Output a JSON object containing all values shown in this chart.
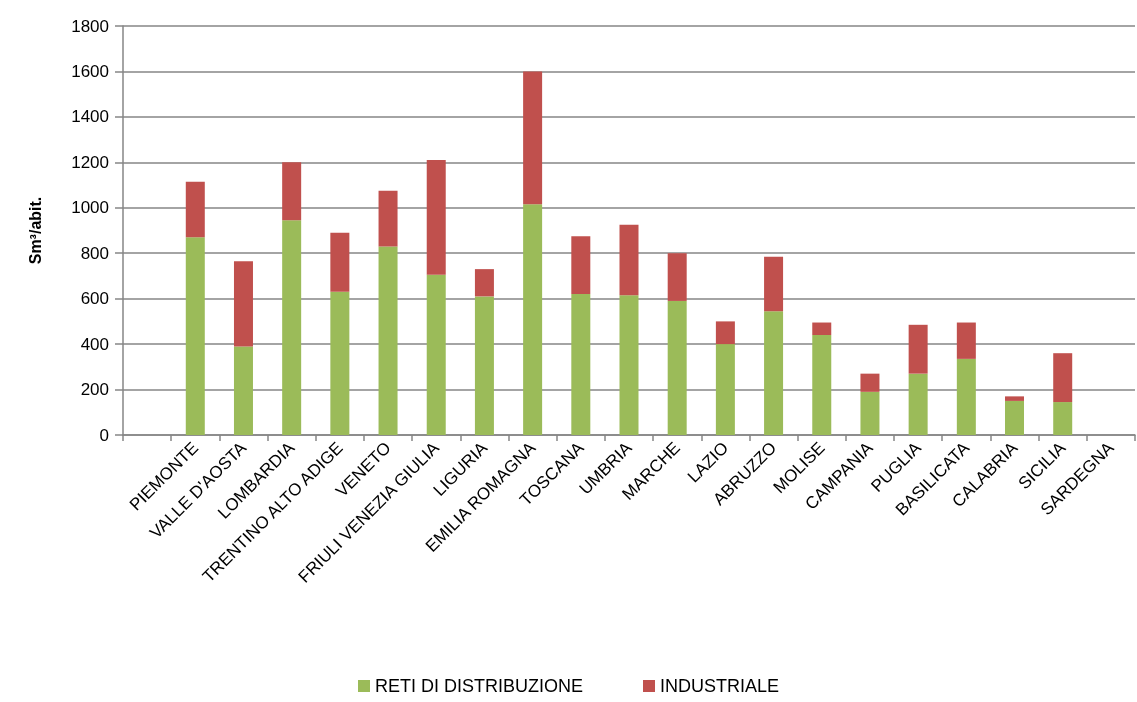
{
  "chart_data": {
    "type": "bar",
    "stacked": true,
    "ylabel": "Sm³/abit.",
    "categories": [
      null,
      "PIEMONTE",
      "VALLE D'AOSTA",
      "LOMBARDIA",
      "TRENTINO ALTO ADIGE",
      "VENETO",
      "FRIULI VENEZIA GIULIA",
      "LIGURIA",
      "EMILIA ROMAGNA",
      "TOSCANA",
      "UMBRIA",
      "MARCHE",
      "LAZIO",
      "ABRUZZO",
      "MOLISE",
      "CAMPANIA",
      "PUGLIA",
      "BASILICATA",
      "CALABRIA",
      "SICILIA",
      "SARDEGNA"
    ],
    "series": [
      {
        "name": "RETI DI DISTRIBUZIONE",
        "color": "#9bbb59",
        "values": [
          null,
          870,
          390,
          945,
          630,
          830,
          705,
          610,
          1015,
          620,
          615,
          590,
          400,
          545,
          440,
          190,
          270,
          335,
          150,
          145,
          null
        ]
      },
      {
        "name": "INDUSTRIALE",
        "color": "#c0504d",
        "values": [
          null,
          245,
          375,
          255,
          260,
          245,
          505,
          120,
          585,
          255,
          310,
          210,
          100,
          240,
          55,
          80,
          215,
          160,
          20,
          215,
          null
        ]
      }
    ],
    "ylim": [
      0,
      1800
    ],
    "yticks": [
      0,
      200,
      400,
      600,
      800,
      1000,
      1200,
      1400,
      1600,
      1800
    ],
    "grid": "y",
    "legend": "bottom"
  }
}
